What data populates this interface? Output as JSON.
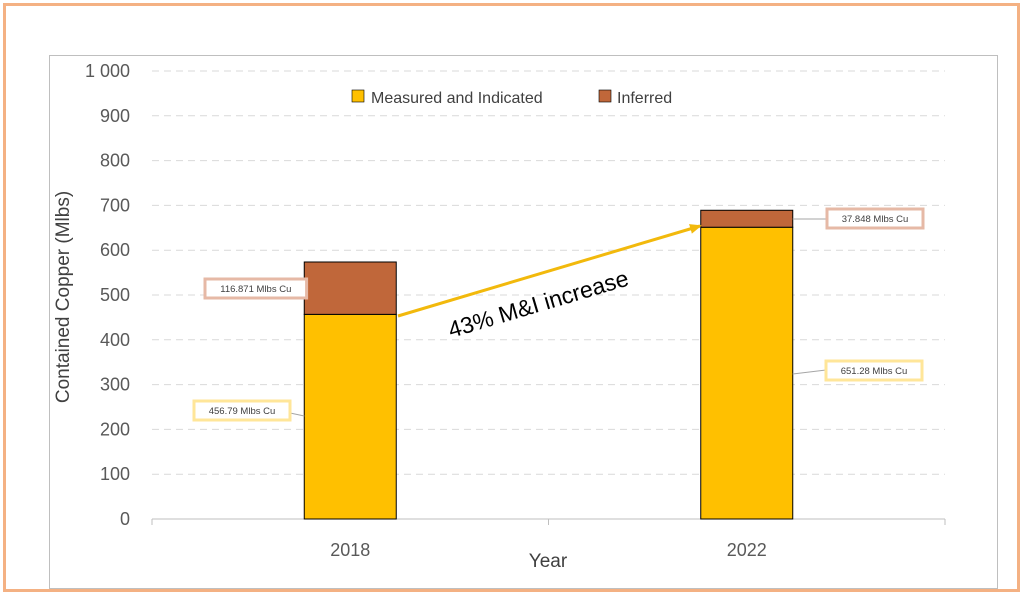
{
  "colors": {
    "frame_border": "#f4b183",
    "measured_indicated": "#ffc000",
    "inferred": "#c0673a",
    "gridline": "#d9d9d9",
    "arrow": "#f2b90c",
    "mi_label_border": "#ffe699",
    "inf_label_border": "#e6b9a6"
  },
  "chart_data": {
    "type": "bar",
    "stacked": true,
    "categories": [
      "2018",
      "2022"
    ],
    "series": [
      {
        "name": "Measured and Indicated",
        "values": [
          456.79,
          651.28
        ],
        "color": "#ffc000"
      },
      {
        "name": "Inferred",
        "values": [
          116.871,
          37.848
        ],
        "color": "#c0673a"
      }
    ],
    "data_labels": {
      "Measured and Indicated": [
        "456.79  Mlbs Cu",
        "651.28  Mlbs Cu"
      ],
      "Inferred": [
        "116.871  Mlbs Cu",
        "37.848  Mlbs Cu"
      ]
    },
    "xlabel": "Year",
    "ylabel": "Contained Copper (Mlbs)",
    "ylim": [
      0,
      1000
    ],
    "yticks": [
      0,
      100,
      200,
      300,
      400,
      500,
      600,
      700,
      800,
      900,
      1000
    ],
    "ytick_labels": [
      "0",
      "100",
      "200",
      "300",
      "400",
      "500",
      "600",
      "700",
      "800",
      "900",
      "1 000"
    ],
    "grid": true,
    "grid_style": "dashed",
    "legend": "top-center",
    "annotation": "43% M&I increase"
  }
}
